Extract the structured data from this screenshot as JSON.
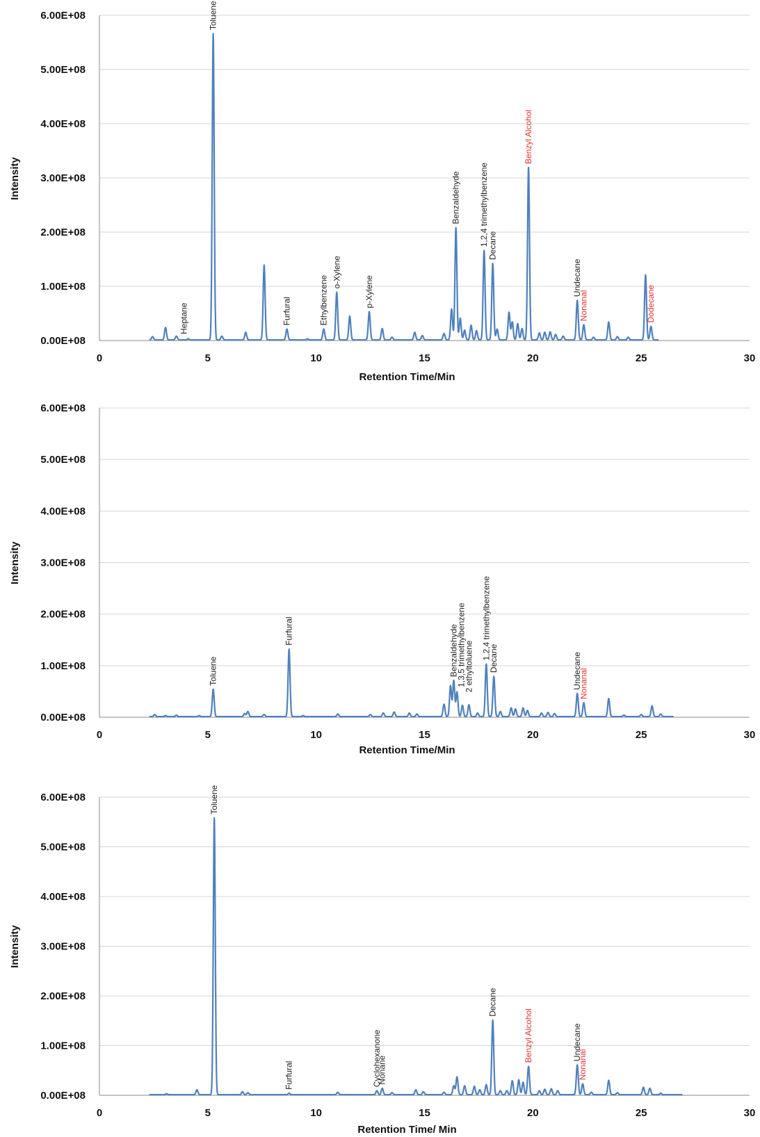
{
  "chart_data": [
    {
      "type": "line",
      "xlabel": "Retention Time/Min",
      "ylabel": "Intensity",
      "xlim": [
        0,
        30
      ],
      "ylim": [
        0,
        600000000
      ],
      "x_ticks": [
        "0",
        "5",
        "10",
        "15",
        "20",
        "25",
        "30"
      ],
      "y_ticks": [
        "0.00E+08",
        "1.00E+08",
        "2.00E+08",
        "3.00E+08",
        "4.00E+08",
        "5.00E+08",
        "6.00E+08"
      ],
      "grid": true,
      "color": "#4f81bd",
      "trace_range": [
        2.3,
        25.8
      ],
      "peaks": [
        {
          "x": 2.45,
          "y": 6000000
        },
        {
          "x": 3.05,
          "y": 23000000
        },
        {
          "x": 3.55,
          "y": 7000000
        },
        {
          "x": 4.1,
          "y": 2000000
        },
        {
          "x": 5.25,
          "y": 565000000
        },
        {
          "x": 5.65,
          "y": 7000000
        },
        {
          "x": 6.75,
          "y": 14000000
        },
        {
          "x": 7.6,
          "y": 138000000
        },
        {
          "x": 8.65,
          "y": 20000000
        },
        {
          "x": 9.6,
          "y": 2000000
        },
        {
          "x": 10.35,
          "y": 20000000
        },
        {
          "x": 10.95,
          "y": 88000000
        },
        {
          "x": 11.55,
          "y": 44000000
        },
        {
          "x": 12.45,
          "y": 52000000
        },
        {
          "x": 13.05,
          "y": 21000000
        },
        {
          "x": 13.5,
          "y": 5000000
        },
        {
          "x": 14.55,
          "y": 14000000
        },
        {
          "x": 14.9,
          "y": 8000000
        },
        {
          "x": 15.9,
          "y": 12000000
        },
        {
          "x": 16.25,
          "y": 57000000
        },
        {
          "x": 16.45,
          "y": 207000000
        },
        {
          "x": 16.65,
          "y": 40000000
        },
        {
          "x": 16.85,
          "y": 18000000
        },
        {
          "x": 17.15,
          "y": 27000000
        },
        {
          "x": 17.4,
          "y": 17000000
        },
        {
          "x": 17.75,
          "y": 165000000
        },
        {
          "x": 18.15,
          "y": 141000000
        },
        {
          "x": 18.35,
          "y": 20000000
        },
        {
          "x": 18.9,
          "y": 51000000
        },
        {
          "x": 19.05,
          "y": 33000000
        },
        {
          "x": 19.3,
          "y": 30000000
        },
        {
          "x": 19.5,
          "y": 21000000
        },
        {
          "x": 19.8,
          "y": 318000000
        },
        {
          "x": 20.3,
          "y": 13000000
        },
        {
          "x": 20.55,
          "y": 14000000
        },
        {
          "x": 20.8,
          "y": 15000000
        },
        {
          "x": 21.05,
          "y": 10000000
        },
        {
          "x": 21.4,
          "y": 7000000
        },
        {
          "x": 22.05,
          "y": 73000000
        },
        {
          "x": 22.35,
          "y": 28000000
        },
        {
          "x": 22.8,
          "y": 5000000
        },
        {
          "x": 23.5,
          "y": 33000000
        },
        {
          "x": 23.9,
          "y": 6000000
        },
        {
          "x": 24.4,
          "y": 5000000
        },
        {
          "x": 25.2,
          "y": 120000000
        },
        {
          "x": 25.45,
          "y": 25000000
        }
      ],
      "annotations": [
        {
          "text": "Heptane",
          "x": 3.9,
          "y": 4000000,
          "color": "#222222"
        },
        {
          "text": "Toluene",
          "x": 5.25,
          "y": 565000000,
          "color": "#222222"
        },
        {
          "text": "Furfural",
          "x": 8.65,
          "y": 20000000,
          "color": "#222222"
        },
        {
          "text": "Ethylbenzene",
          "x": 10.35,
          "y": 20000000,
          "color": "#222222"
        },
        {
          "text": "o-Xylene",
          "x": 10.95,
          "y": 88000000,
          "color": "#222222"
        },
        {
          "text": "p-Xylene",
          "x": 12.45,
          "y": 52000000,
          "color": "#222222"
        },
        {
          "text": "Benzaldehyde",
          "x": 16.45,
          "y": 207000000,
          "color": "#222222"
        },
        {
          "text": "1,2,4 trimethylbenzene",
          "x": 17.75,
          "y": 165000000,
          "color": "#222222"
        },
        {
          "text": "Decane",
          "x": 18.15,
          "y": 141000000,
          "color": "#222222"
        },
        {
          "text": "Benzyl Alcohol",
          "x": 19.8,
          "y": 318000000,
          "color": "#e8322f"
        },
        {
          "text": "Undecane",
          "x": 22.05,
          "y": 73000000,
          "color": "#222222"
        },
        {
          "text": "Nonanal",
          "x": 22.35,
          "y": 28000000,
          "color": "#e8322f"
        },
        {
          "text": "Dodecane",
          "x": 25.45,
          "y": 25000000,
          "color": "#e8322f"
        }
      ]
    },
    {
      "type": "line",
      "xlabel": "Retention Time/Min",
      "ylabel": "Intensity",
      "xlim": [
        0,
        30
      ],
      "ylim": [
        0,
        600000000
      ],
      "x_ticks": [
        "0",
        "5",
        "10",
        "15",
        "20",
        "25",
        "30"
      ],
      "y_ticks": [
        "0.00E+08",
        "1.00E+08",
        "2.00E+08",
        "3.00E+08",
        "4.00E+08",
        "5.00E+08",
        "6.00E+08"
      ],
      "grid": true,
      "color": "#4f81bd",
      "trace_range": [
        2.3,
        26.5
      ],
      "peaks": [
        {
          "x": 2.55,
          "y": 4000000
        },
        {
          "x": 3.05,
          "y": 2000000
        },
        {
          "x": 3.55,
          "y": 3000000
        },
        {
          "x": 4.6,
          "y": 2000000
        },
        {
          "x": 5.25,
          "y": 53000000
        },
        {
          "x": 6.7,
          "y": 6000000
        },
        {
          "x": 6.85,
          "y": 10000000
        },
        {
          "x": 7.6,
          "y": 4000000
        },
        {
          "x": 8.75,
          "y": 131000000
        },
        {
          "x": 9.4,
          "y": 2000000
        },
        {
          "x": 11.0,
          "y": 5000000
        },
        {
          "x": 12.5,
          "y": 4000000
        },
        {
          "x": 13.1,
          "y": 7000000
        },
        {
          "x": 13.6,
          "y": 9000000
        },
        {
          "x": 14.3,
          "y": 7000000
        },
        {
          "x": 14.65,
          "y": 5000000
        },
        {
          "x": 15.9,
          "y": 24000000
        },
        {
          "x": 16.2,
          "y": 60000000
        },
        {
          "x": 16.35,
          "y": 70000000
        },
        {
          "x": 16.5,
          "y": 48000000
        },
        {
          "x": 16.75,
          "y": 22000000
        },
        {
          "x": 17.05,
          "y": 23000000
        },
        {
          "x": 17.45,
          "y": 7000000
        },
        {
          "x": 17.85,
          "y": 102000000
        },
        {
          "x": 18.2,
          "y": 78000000
        },
        {
          "x": 18.5,
          "y": 10000000
        },
        {
          "x": 19.0,
          "y": 17000000
        },
        {
          "x": 19.2,
          "y": 15000000
        },
        {
          "x": 19.55,
          "y": 17000000
        },
        {
          "x": 19.75,
          "y": 12000000
        },
        {
          "x": 20.4,
          "y": 7000000
        },
        {
          "x": 20.7,
          "y": 8000000
        },
        {
          "x": 21.0,
          "y": 6000000
        },
        {
          "x": 22.05,
          "y": 45000000
        },
        {
          "x": 22.35,
          "y": 27000000
        },
        {
          "x": 23.5,
          "y": 35000000
        },
        {
          "x": 24.2,
          "y": 3000000
        },
        {
          "x": 25.0,
          "y": 4000000
        },
        {
          "x": 25.5,
          "y": 21000000
        },
        {
          "x": 25.9,
          "y": 5000000
        }
      ],
      "annotations": [
        {
          "text": "Toluene",
          "x": 5.25,
          "y": 53000000,
          "color": "#222222"
        },
        {
          "text": "Furfural",
          "x": 8.75,
          "y": 131000000,
          "color": "#222222"
        },
        {
          "text": "Benzaldehyde",
          "x": 16.35,
          "y": 70000000,
          "color": "#222222"
        },
        {
          "text": "1,3,5 trimethylbenzene",
          "x": 16.7,
          "y": 50000000,
          "color": "#222222"
        },
        {
          "text": "2 ethyltoluene",
          "x": 17.05,
          "y": 40000000,
          "color": "#222222"
        },
        {
          "text": "1,2,4 trimethylbenzene",
          "x": 17.85,
          "y": 102000000,
          "color": "#222222"
        },
        {
          "text": "Decane",
          "x": 18.2,
          "y": 78000000,
          "color": "#222222"
        },
        {
          "text": "Undecane",
          "x": 22.05,
          "y": 45000000,
          "color": "#222222"
        },
        {
          "text": "Nonanal",
          "x": 22.35,
          "y": 27000000,
          "color": "#e8322f"
        }
      ]
    },
    {
      "type": "line",
      "xlabel": "Retention Time/ Min",
      "ylabel": "Intensity",
      "xlim": [
        0,
        30
      ],
      "ylim": [
        0,
        600000000
      ],
      "x_ticks": [
        "0",
        "5",
        "10",
        "15",
        "20",
        "25",
        "30"
      ],
      "y_ticks": [
        "0.00E+08",
        "1.00E+08",
        "2.00E+08",
        "3.00E+08",
        "4.00E+08",
        "5.00E+08",
        "6.00E+08"
      ],
      "grid": true,
      "color": "#4f81bd",
      "trace_range": [
        2.3,
        26.9
      ],
      "peaks": [
        {
          "x": 3.1,
          "y": 2000000
        },
        {
          "x": 4.5,
          "y": 10000000
        },
        {
          "x": 5.3,
          "y": 557000000
        },
        {
          "x": 6.6,
          "y": 6000000
        },
        {
          "x": 6.85,
          "y": 4000000
        },
        {
          "x": 8.75,
          "y": 3000000
        },
        {
          "x": 11.0,
          "y": 5000000
        },
        {
          "x": 12.8,
          "y": 8000000
        },
        {
          "x": 13.05,
          "y": 13000000
        },
        {
          "x": 13.5,
          "y": 4000000
        },
        {
          "x": 14.6,
          "y": 10000000
        },
        {
          "x": 14.95,
          "y": 6000000
        },
        {
          "x": 15.9,
          "y": 5000000
        },
        {
          "x": 16.35,
          "y": 18000000
        },
        {
          "x": 16.5,
          "y": 36000000
        },
        {
          "x": 16.85,
          "y": 18000000
        },
        {
          "x": 17.3,
          "y": 17000000
        },
        {
          "x": 17.55,
          "y": 10000000
        },
        {
          "x": 17.85,
          "y": 20000000
        },
        {
          "x": 18.15,
          "y": 150000000
        },
        {
          "x": 18.5,
          "y": 8000000
        },
        {
          "x": 18.8,
          "y": 8000000
        },
        {
          "x": 19.05,
          "y": 28000000
        },
        {
          "x": 19.35,
          "y": 30000000
        },
        {
          "x": 19.55,
          "y": 25000000
        },
        {
          "x": 19.8,
          "y": 57000000
        },
        {
          "x": 20.3,
          "y": 8000000
        },
        {
          "x": 20.55,
          "y": 11000000
        },
        {
          "x": 20.85,
          "y": 12000000
        },
        {
          "x": 21.15,
          "y": 8000000
        },
        {
          "x": 22.05,
          "y": 60000000
        },
        {
          "x": 22.3,
          "y": 22000000
        },
        {
          "x": 22.7,
          "y": 5000000
        },
        {
          "x": 23.5,
          "y": 29000000
        },
        {
          "x": 23.9,
          "y": 4000000
        },
        {
          "x": 25.1,
          "y": 15000000
        },
        {
          "x": 25.4,
          "y": 13000000
        },
        {
          "x": 25.9,
          "y": 3000000
        }
      ],
      "annotations": [
        {
          "text": "Toluene",
          "x": 5.3,
          "y": 557000000,
          "color": "#222222"
        },
        {
          "text": "Furfural",
          "x": 8.75,
          "y": 3000000,
          "color": "#222222"
        },
        {
          "text": "Cyclohexanone",
          "x": 12.8,
          "y": 8000000,
          "color": "#222222"
        },
        {
          "text": "Nonane",
          "x": 13.05,
          "y": 13000000,
          "color": "#222222"
        },
        {
          "text": "Decane",
          "x": 18.15,
          "y": 150000000,
          "color": "#222222"
        },
        {
          "text": "Benzyl Alcohol",
          "x": 19.8,
          "y": 57000000,
          "color": "#e8322f"
        },
        {
          "text": "Undecane",
          "x": 22.05,
          "y": 60000000,
          "color": "#222222"
        },
        {
          "text": "Nonanal",
          "x": 22.3,
          "y": 22000000,
          "color": "#e8322f"
        }
      ]
    }
  ]
}
